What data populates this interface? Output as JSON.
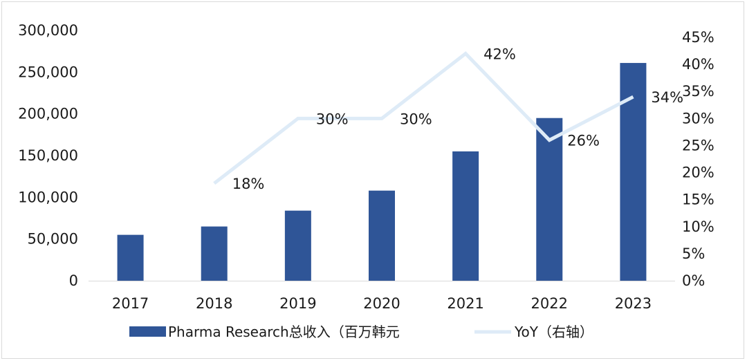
{
  "chart_data": {
    "type": "bar",
    "categories": [
      "2017",
      "2018",
      "2019",
      "2020",
      "2021",
      "2022",
      "2023"
    ],
    "series": [
      {
        "name": "Pharma Research总收入（百万韩元",
        "type": "bar",
        "axis": "left",
        "color": "#2f5597",
        "values": [
          55000,
          65000,
          84000,
          108000,
          155000,
          195000,
          261000
        ]
      },
      {
        "name": "YoY（右轴）",
        "type": "line",
        "axis": "right",
        "color": "#deebf7",
        "values": [
          null,
          0.18,
          0.3,
          0.3,
          0.42,
          0.26,
          0.34
        ],
        "labels": [
          "",
          "18%",
          "30%",
          "30%",
          "42%",
          "26%",
          "34%"
        ]
      }
    ],
    "y_left": {
      "min": 0,
      "max": 300000,
      "step": 50000,
      "tick_labels": [
        "0",
        "50,000",
        "100,000",
        "150,000",
        "200,000",
        "250,000",
        "300,000"
      ]
    },
    "y_right": {
      "min": 0,
      "max": 0.45,
      "step": 0.05,
      "tick_labels": [
        "0%",
        "5%",
        "10%",
        "15%",
        "20%",
        "25%",
        "30%",
        "35%",
        "40%",
        "45%"
      ]
    },
    "grid": false,
    "legend_position": "bottom"
  }
}
